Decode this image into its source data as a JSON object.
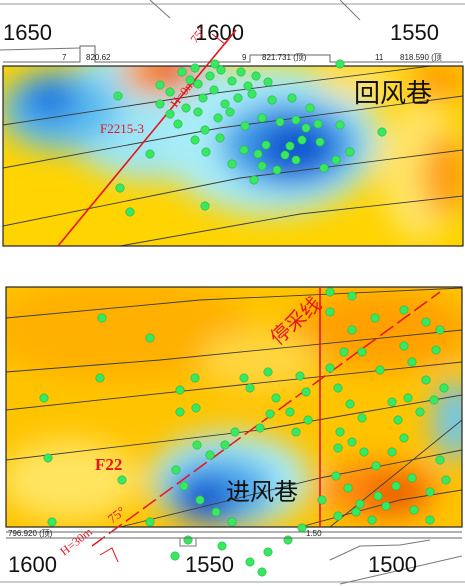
{
  "colors": {
    "fault": "#e8141c",
    "point": "#39e860",
    "strata": "#3b3b3b",
    "cold": "#0a5ad6",
    "hot": "#e85a00",
    "mid": "#ffd000"
  },
  "top_map": {
    "axis": {
      "left": "1650",
      "middle": "1600",
      "right": "1550"
    },
    "survey_labels": [
      "7",
      "820.62",
      "9",
      "821.731 (顶)",
      "11",
      "818.590 (顶"
    ],
    "fault_label": "F2215-3",
    "dip_label": "H=0m",
    "angle_label": "75°",
    "roadway_label": "回风巷"
  },
  "bottom_map": {
    "axis": {
      "left": "1600",
      "middle": "1550",
      "right": "1500"
    },
    "survey_labels": [
      "796.920 (顶)",
      "1.50"
    ],
    "fault_label": "F22",
    "dip_label": "H=30m",
    "angle_label": "75°",
    "stop_line_label": "停采线",
    "roadway_label": "进风巷"
  },
  "points_top": [
    [
      182,
      72
    ],
    [
      190,
      80
    ],
    [
      195,
      68
    ],
    [
      210,
      76
    ],
    [
      221,
      70
    ],
    [
      232,
      81
    ],
    [
      241,
      72
    ],
    [
      248,
      86
    ],
    [
      252,
      94
    ],
    [
      214,
      90
    ],
    [
      203,
      98
    ],
    [
      225,
      104
    ],
    [
      238,
      98
    ],
    [
      230,
      112
    ],
    [
      218,
      118
    ],
    [
      198,
      112
    ],
    [
      186,
      108
    ],
    [
      170,
      114
    ],
    [
      160,
      104
    ],
    [
      178,
      124
    ],
    [
      205,
      130
    ],
    [
      195,
      140
    ],
    [
      206,
      152
    ],
    [
      220,
      138
    ],
    [
      245,
      126
    ],
    [
      262,
      118
    ],
    [
      280,
      122
    ],
    [
      296,
      120
    ],
    [
      306,
      128
    ],
    [
      318,
      124
    ],
    [
      302,
      140
    ],
    [
      290,
      146
    ],
    [
      285,
      155
    ],
    [
      266,
      145
    ],
    [
      258,
      154
    ],
    [
      262,
      166
    ],
    [
      277,
      170
    ],
    [
      296,
      160
    ],
    [
      324,
      168
    ],
    [
      336,
      160
    ],
    [
      350,
      152
    ],
    [
      320,
      142
    ],
    [
      292,
      98
    ],
    [
      272,
      100
    ],
    [
      256,
      76
    ],
    [
      268,
      82
    ],
    [
      340,
      64
    ],
    [
      118,
      96
    ],
    [
      120,
      188
    ],
    [
      130,
      212
    ],
    [
      205,
      206
    ],
    [
      254,
      180
    ],
    [
      244,
      150
    ],
    [
      170,
      92
    ],
    [
      160,
      85
    ],
    [
      340,
      125
    ],
    [
      382,
      132
    ],
    [
      310,
      108
    ],
    [
      232,
      164
    ],
    [
      150,
      154
    ],
    [
      198,
      84
    ],
    [
      215,
      64
    ]
  ],
  "points_bottom": [
    [
      102,
      318
    ],
    [
      150,
      338
    ],
    [
      100,
      378
    ],
    [
      195,
      378
    ],
    [
      180,
      390
    ],
    [
      244,
      378
    ],
    [
      250,
      388
    ],
    [
      268,
      372
    ],
    [
      276,
      398
    ],
    [
      300,
      376
    ],
    [
      306,
      392
    ],
    [
      290,
      412
    ],
    [
      308,
      420
    ],
    [
      296,
      432
    ],
    [
      270,
      414
    ],
    [
      260,
      428
    ],
    [
      235,
      432
    ],
    [
      225,
      445
    ],
    [
      210,
      455
    ],
    [
      197,
      445
    ],
    [
      176,
      470
    ],
    [
      184,
      486
    ],
    [
      200,
      500
    ],
    [
      216,
      512
    ],
    [
      232,
      522
    ],
    [
      180,
      412
    ],
    [
      48,
      458
    ],
    [
      44,
      398
    ],
    [
      122,
      480
    ],
    [
      52,
      522
    ],
    [
      150,
      522
    ],
    [
      330,
      312
    ],
    [
      352,
      330
    ],
    [
      375,
      318
    ],
    [
      404,
      310
    ],
    [
      426,
      322
    ],
    [
      440,
      330
    ],
    [
      436,
      350
    ],
    [
      412,
      362
    ],
    [
      380,
      370
    ],
    [
      362,
      352
    ],
    [
      344,
      352
    ],
    [
      330,
      368
    ],
    [
      338,
      388
    ],
    [
      350,
      404
    ],
    [
      362,
      418
    ],
    [
      340,
      432
    ],
    [
      352,
      442
    ],
    [
      364,
      452
    ],
    [
      376,
      466
    ],
    [
      392,
      452
    ],
    [
      404,
      438
    ],
    [
      398,
      420
    ],
    [
      420,
      412
    ],
    [
      434,
      400
    ],
    [
      444,
      388
    ],
    [
      426,
      380
    ],
    [
      408,
      398
    ],
    [
      392,
      402
    ],
    [
      440,
      460
    ],
    [
      446,
      480
    ],
    [
      430,
      492
    ],
    [
      412,
      478
    ],
    [
      396,
      486
    ],
    [
      378,
      496
    ],
    [
      360,
      504
    ],
    [
      348,
      488
    ],
    [
      336,
      476
    ],
    [
      322,
      500
    ],
    [
      338,
      516
    ],
    [
      356,
      512
    ],
    [
      372,
      520
    ],
    [
      386,
      506
    ],
    [
      414,
      510
    ],
    [
      430,
      520
    ],
    [
      352,
      296
    ],
    [
      330,
      292
    ],
    [
      268,
      552
    ],
    [
      250,
      562
    ],
    [
      262,
      572
    ],
    [
      222,
      546
    ],
    [
      188,
      540
    ],
    [
      175,
      556
    ],
    [
      302,
      528
    ],
    [
      288,
      540
    ],
    [
      196,
      408
    ],
    [
      338,
      448
    ],
    [
      404,
      346
    ]
  ]
}
